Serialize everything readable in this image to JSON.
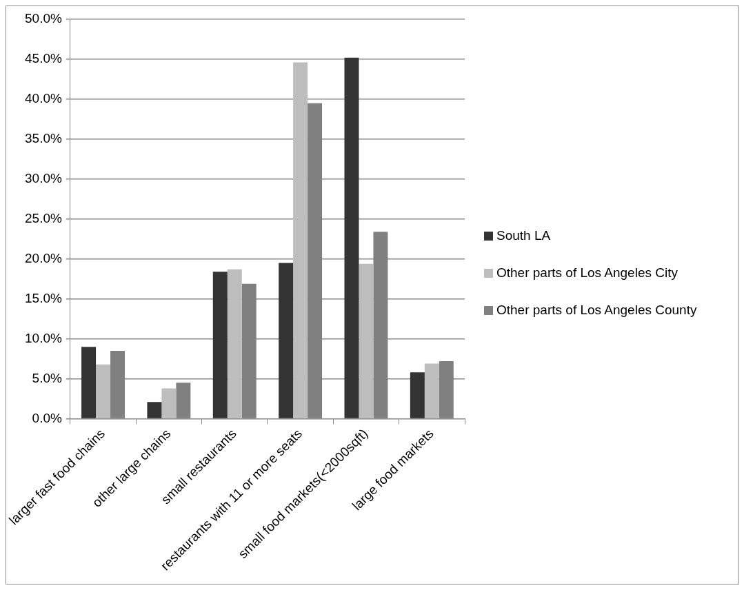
{
  "chart_data": {
    "type": "bar",
    "categories": [
      "larger fast food chains",
      "other large chains",
      "small restaurants",
      "restaurants with 11 or more seats",
      "small food markets(<2000sqft)",
      "large food markets"
    ],
    "series": [
      {
        "name": "South LA",
        "color": "#333333",
        "values": [
          9.0,
          2.1,
          18.4,
          19.5,
          45.2,
          5.8
        ]
      },
      {
        "name": "Other parts of Los Angeles City",
        "color": "#bdbdbd",
        "values": [
          6.8,
          3.8,
          18.7,
          44.6,
          19.4,
          6.9
        ]
      },
      {
        "name": "Other parts of Los Angeles County",
        "color": "#808080",
        "values": [
          8.5,
          4.5,
          16.9,
          39.5,
          23.4,
          7.2
        ]
      }
    ],
    "ylim": [
      0,
      50
    ],
    "yticks": [
      {
        "value": 0,
        "label": "0.0%"
      },
      {
        "value": 5,
        "label": "5.0%"
      },
      {
        "value": 10,
        "label": "10.0%"
      },
      {
        "value": 15,
        "label": "15.0%"
      },
      {
        "value": 20,
        "label": "20.0%"
      },
      {
        "value": 25,
        "label": "25.0%"
      },
      {
        "value": 30,
        "label": "30.0%"
      },
      {
        "value": 35,
        "label": "35.0%"
      },
      {
        "value": 40,
        "label": "40.0%"
      },
      {
        "value": 45,
        "label": "45.0%"
      },
      {
        "value": 50,
        "label": "50.0%"
      }
    ],
    "grid": "y",
    "legend": "right"
  }
}
